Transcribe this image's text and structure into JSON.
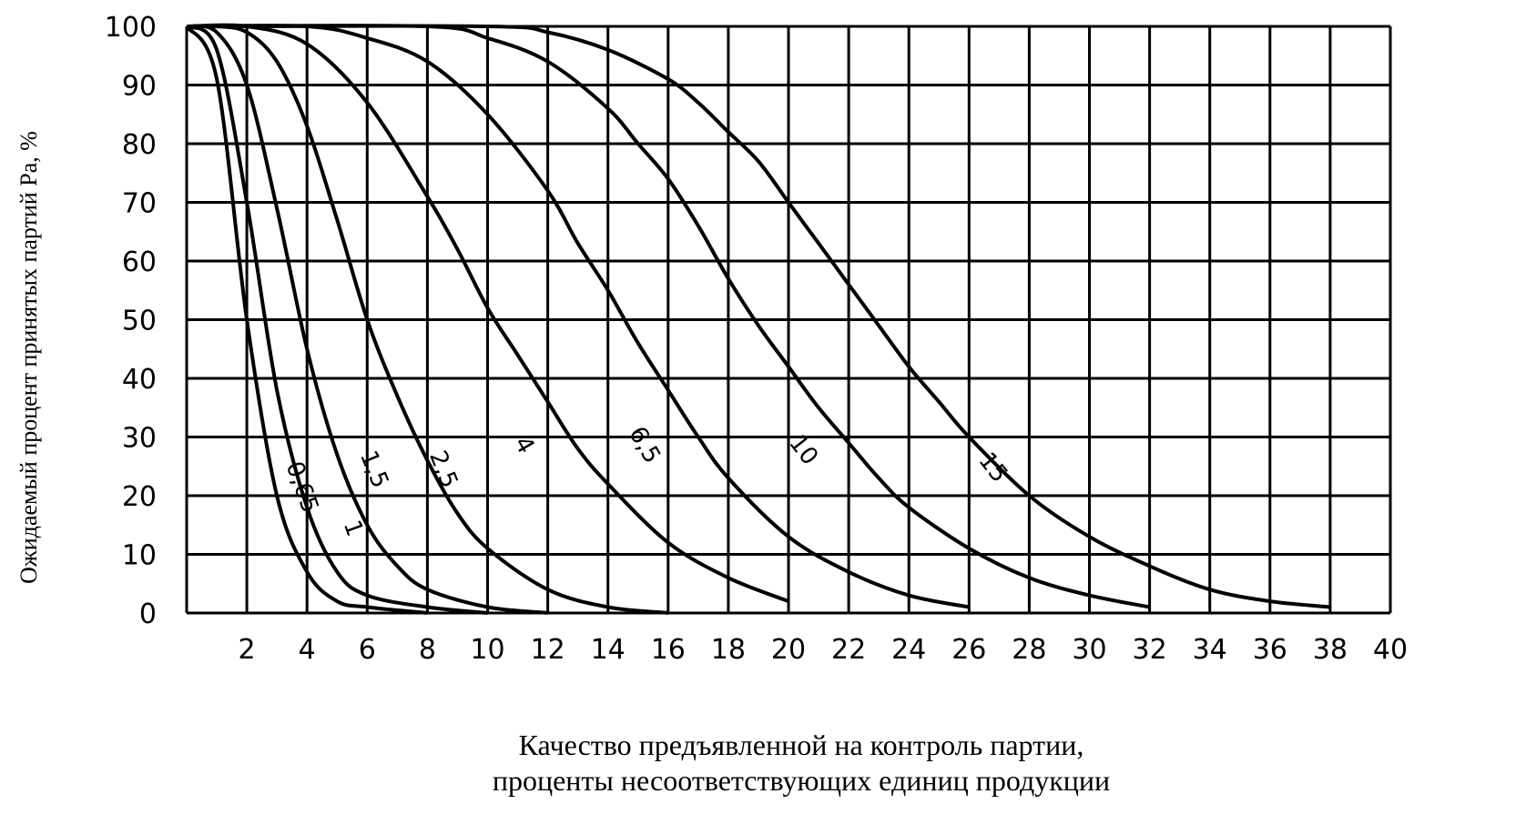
{
  "chart_data": {
    "type": "line",
    "xlabel_line1": "Качество предъявленной на контроль партии,",
    "xlabel_line2": "проценты несоответствующих единиц продукции",
    "ylabel": "Ожидаемый процент принятых партий Pa, %",
    "xlim": [
      0,
      40
    ],
    "ylim": [
      0,
      100
    ],
    "xticks": [
      "2",
      "4",
      "6",
      "8",
      "10",
      "12",
      "14",
      "16",
      "18",
      "20",
      "22",
      "24",
      "26",
      "28",
      "30",
      "32",
      "34",
      "36",
      "38",
      "40"
    ],
    "yticks": [
      "0",
      "10",
      "20",
      "30",
      "40",
      "50",
      "60",
      "70",
      "80",
      "90",
      "100"
    ],
    "grid": true,
    "series": [
      {
        "name": "0,65",
        "x": [
          0,
          1,
          2,
          3,
          4,
          5,
          6,
          8
        ],
        "y": [
          100,
          91,
          50,
          20,
          7,
          2,
          1,
          0
        ]
      },
      {
        "name": "1",
        "x": [
          0,
          1,
          2,
          3,
          4,
          5,
          6,
          8,
          10
        ],
        "y": [
          100,
          96,
          70,
          38,
          18,
          7,
          3,
          1,
          0
        ]
      },
      {
        "name": "1,5",
        "x": [
          0,
          1,
          2,
          3,
          4,
          5,
          6,
          7,
          8,
          10,
          12
        ],
        "y": [
          100,
          99,
          90,
          69,
          45,
          27,
          15,
          8,
          4,
          1,
          0
        ]
      },
      {
        "name": "2,5",
        "x": [
          0,
          1,
          2,
          3,
          4,
          5,
          6,
          7,
          8,
          9,
          10,
          12,
          14,
          16
        ],
        "y": [
          100,
          100,
          99,
          94,
          83,
          67,
          50,
          37,
          26,
          17,
          11,
          4,
          1,
          0
        ]
      },
      {
        "name": "4",
        "x": [
          0,
          2,
          4,
          6,
          8,
          9,
          10,
          11,
          12,
          13,
          14,
          16,
          18,
          20
        ],
        "y": [
          100,
          100,
          97,
          87,
          71,
          62,
          52,
          44,
          36,
          28,
          22,
          12,
          6,
          2
        ]
      },
      {
        "name": "6,5",
        "x": [
          0,
          4,
          6,
          8,
          10,
          12,
          13,
          14,
          15,
          16,
          17,
          18,
          20,
          22,
          24,
          26
        ],
        "y": [
          100,
          100,
          98,
          94,
          85,
          72,
          63,
          55,
          46,
          38,
          30,
          23,
          13,
          7,
          3,
          1
        ]
      },
      {
        "name": "10",
        "x": [
          0,
          8,
          10,
          12,
          14,
          15,
          16,
          17,
          18,
          19,
          20,
          21,
          22,
          23,
          24,
          26,
          28,
          30,
          32
        ],
        "y": [
          100,
          100,
          98,
          94,
          86,
          80,
          74,
          66,
          57,
          49,
          42,
          35,
          29,
          23,
          18,
          11,
          6,
          3,
          1
        ]
      },
      {
        "name": "15",
        "x": [
          0,
          10,
          12,
          14,
          16,
          17,
          18,
          19,
          20,
          21,
          22,
          23,
          24,
          25,
          26,
          28,
          30,
          32,
          34,
          36,
          38
        ],
        "y": [
          100,
          100,
          99,
          96,
          91,
          87,
          82,
          77,
          70,
          63,
          56,
          49,
          42,
          36,
          30,
          20,
          13,
          8,
          4,
          2,
          1
        ]
      }
    ]
  }
}
